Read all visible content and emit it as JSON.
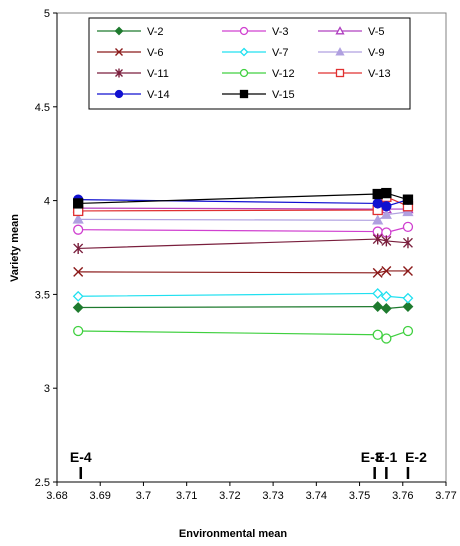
{
  "chart_data": {
    "type": "line",
    "xlabel": "Environmental mean",
    "ylabel": "Variety mean",
    "xlim": [
      3.68,
      3.77
    ],
    "ylim": [
      2.5,
      5
    ],
    "x_ticks": [
      "3.68",
      "3.69",
      "3.7",
      "3.71",
      "3.72",
      "3.73",
      "3.74",
      "3.75",
      "3.76",
      "3.77"
    ],
    "y_ticks": [
      "2.5",
      "3",
      "3.5",
      "4",
      "4.5",
      "5"
    ],
    "legend_position": "top",
    "environments": [
      {
        "name": "E-4",
        "x": 3.6855
      },
      {
        "name": "E-3",
        "x": 3.7535
      },
      {
        "name": "E-1",
        "x": 3.7562
      },
      {
        "name": "E-2",
        "x": 3.7612
      }
    ],
    "x": [
      3.6849,
      3.7542,
      3.7562,
      3.7612
    ],
    "series": [
      {
        "name": "V-2",
        "color": "#1e7a2e",
        "marker": "diamond",
        "filled": true,
        "values": [
          3.43,
          3.435,
          3.425,
          3.435
        ]
      },
      {
        "name": "V-3",
        "color": "#d040d0",
        "marker": "circle",
        "filled": false,
        "values": [
          3.845,
          3.835,
          3.83,
          3.86
        ]
      },
      {
        "name": "V-5",
        "color": "#b040c0",
        "marker": "triangle",
        "filled": false,
        "values": [
          3.96,
          3.955,
          3.955,
          3.955
        ]
      },
      {
        "name": "V-6",
        "color": "#8b1a1a",
        "marker": "x",
        "filled": false,
        "values": [
          3.62,
          3.615,
          3.625,
          3.625
        ]
      },
      {
        "name": "V-7",
        "color": "#20e0f0",
        "marker": "diamond",
        "filled": false,
        "values": [
          3.49,
          3.505,
          3.49,
          3.48
        ]
      },
      {
        "name": "V-9",
        "color": "#b0a0e0",
        "marker": "triangle",
        "filled": true,
        "values": [
          3.9,
          3.895,
          3.925,
          3.94
        ]
      },
      {
        "name": "V-11",
        "color": "#7a1f3d",
        "marker": "star",
        "filled": false,
        "values": [
          3.745,
          3.795,
          3.785,
          3.775
        ]
      },
      {
        "name": "V-12",
        "color": "#40d040",
        "marker": "circle",
        "filled": false,
        "values": [
          3.305,
          3.285,
          3.265,
          3.305
        ]
      },
      {
        "name": "V-13",
        "color": "#e03030",
        "marker": "square",
        "filled": false,
        "values": [
          3.945,
          3.95,
          4.02,
          3.97
        ]
      },
      {
        "name": "V-14",
        "color": "#1010d0",
        "marker": "circle",
        "filled": true,
        "values": [
          4.005,
          3.985,
          3.97,
          4.005
        ]
      },
      {
        "name": "V-15",
        "color": "#000000",
        "marker": "square",
        "filled": true,
        "values": [
          3.985,
          4.035,
          4.04,
          4.005
        ]
      }
    ]
  }
}
